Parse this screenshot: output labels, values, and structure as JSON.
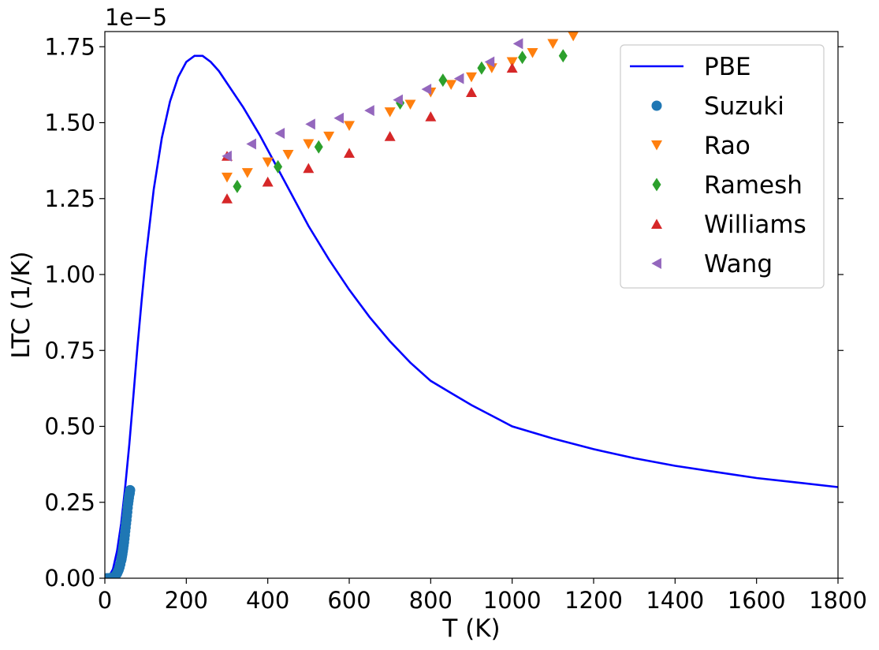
{
  "chart_data": {
    "type": "scatter",
    "xlabel": "T (K)",
    "ylabel": "LTC (1/K)",
    "offset_text": "1e−5",
    "xlim": [
      0,
      1800
    ],
    "ylim": [
      0,
      1.8
    ],
    "y_scale_note": "1e-5",
    "xticks": [
      "0",
      "200",
      "400",
      "600",
      "800",
      "1000",
      "1200",
      "1400",
      "1600",
      "1800"
    ],
    "yticks": [
      "0.00",
      "0.25",
      "0.50",
      "0.75",
      "1.00",
      "1.25",
      "1.50",
      "1.75"
    ],
    "legend_position": "upper-right",
    "grid": false,
    "series": [
      {
        "name": "PBE",
        "kind": "line",
        "color": "#0000ff",
        "x": [
          0,
          10,
          20,
          30,
          40,
          50,
          60,
          70,
          80,
          90,
          100,
          120,
          140,
          160,
          180,
          200,
          220,
          240,
          260,
          280,
          300,
          340,
          380,
          420,
          460,
          500,
          550,
          600,
          650,
          700,
          750,
          800,
          850,
          900,
          1000,
          1100,
          1200,
          1300,
          1400,
          1500,
          1600,
          1700,
          1800
        ],
        "y": [
          0,
          0.005,
          0.03,
          0.09,
          0.18,
          0.3,
          0.44,
          0.6,
          0.76,
          0.91,
          1.05,
          1.28,
          1.45,
          1.57,
          1.65,
          1.7,
          1.72,
          1.72,
          1.7,
          1.67,
          1.63,
          1.55,
          1.46,
          1.36,
          1.26,
          1.16,
          1.05,
          0.95,
          0.86,
          0.78,
          0.71,
          0.65,
          0.61,
          0.57,
          0.5,
          0.46,
          0.425,
          0.395,
          0.37,
          0.35,
          0.33,
          0.315,
          0.3
        ]
      },
      {
        "name": "Suzuki",
        "kind": "scatter",
        "marker": "circle",
        "color": "#1f77b4",
        "x": [
          5,
          10,
          14,
          18,
          22,
          25,
          28,
          30,
          32,
          34,
          36,
          38,
          40,
          41,
          42,
          43,
          44,
          45,
          46,
          47,
          48,
          49,
          50,
          51,
          52,
          53,
          54,
          55,
          56,
          57,
          58,
          59,
          60,
          61,
          62
        ],
        "y": [
          0,
          0.0,
          0.001,
          0.002,
          0.004,
          0.007,
          0.012,
          0.016,
          0.022,
          0.028,
          0.036,
          0.046,
          0.058,
          0.064,
          0.072,
          0.08,
          0.089,
          0.098,
          0.108,
          0.118,
          0.13,
          0.142,
          0.155,
          0.167,
          0.18,
          0.192,
          0.205,
          0.218,
          0.232,
          0.245,
          0.255,
          0.265,
          0.275,
          0.28,
          0.29
        ]
      },
      {
        "name": "Rao",
        "kind": "scatter",
        "marker": "triangle-down",
        "color": "#ff7f0e",
        "x": [
          300,
          350,
          400,
          450,
          500,
          550,
          600,
          700,
          750,
          800,
          850,
          900,
          950,
          1000,
          1050,
          1100,
          1150
        ],
        "y": [
          1.32,
          1.335,
          1.37,
          1.395,
          1.43,
          1.455,
          1.49,
          1.535,
          1.56,
          1.6,
          1.625,
          1.65,
          1.68,
          1.7,
          1.73,
          1.76,
          1.785
        ]
      },
      {
        "name": "Ramesh",
        "kind": "scatter",
        "marker": "diamond",
        "color": "#2ca02c",
        "x": [
          325,
          425,
          525,
          725,
          830,
          925,
          1025,
          1125
        ],
        "y": [
          1.29,
          1.355,
          1.42,
          1.565,
          1.64,
          1.68,
          1.715,
          1.72
        ]
      },
      {
        "name": "Williams",
        "kind": "scatter",
        "marker": "triangle-up",
        "color": "#d62728",
        "x": [
          300,
          300,
          400,
          500,
          600,
          700,
          800,
          900,
          1000
        ],
        "y": [
          1.25,
          1.39,
          1.305,
          1.35,
          1.4,
          1.455,
          1.52,
          1.6,
          1.68
        ]
      },
      {
        "name": "Wang",
        "kind": "scatter",
        "marker": "triangle-left",
        "color": "#9467bd",
        "x": [
          300,
          360,
          430,
          505,
          575,
          650,
          720,
          790,
          870,
          945,
          1015
        ],
        "y": [
          1.39,
          1.43,
          1.465,
          1.495,
          1.515,
          1.54,
          1.575,
          1.61,
          1.645,
          1.7,
          1.76
        ]
      }
    ]
  }
}
